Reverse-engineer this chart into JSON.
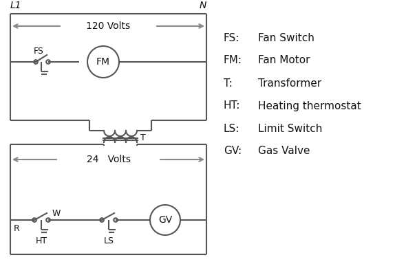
{
  "bg_color": "#ffffff",
  "line_color": "#555555",
  "arrow_color": "#888888",
  "text_color": "#111111",
  "legend_labels": [
    "FS:",
    "FM:",
    "T:",
    "HT:",
    "LS:",
    "GV:"
  ],
  "legend_values": [
    "Fan Switch",
    "Fan Motor",
    "Transformer",
    "Heating thermostat",
    "Limit Switch",
    "Gas Valve"
  ],
  "L1_label": "L1",
  "N_label": "N",
  "v120_label": "120 Volts",
  "v24_label": "24   Volts",
  "T_label": "T",
  "R_label": "R",
  "W_label": "W",
  "FS_label": "FS",
  "FM_label": "FM",
  "HT_label": "HT",
  "LS_label": "LS",
  "GV_label": "GV"
}
